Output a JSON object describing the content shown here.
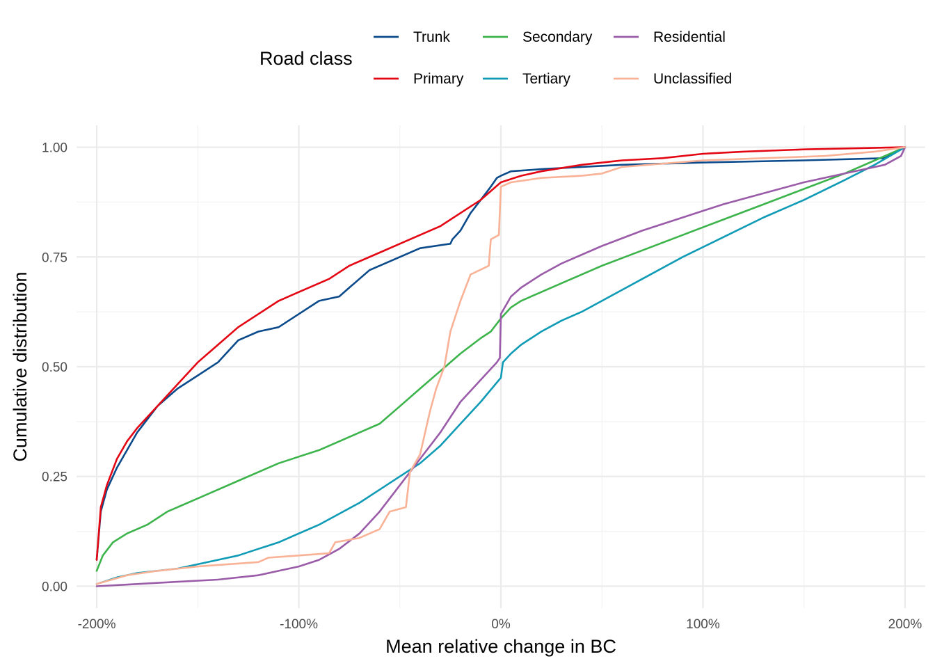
{
  "chart_data": {
    "type": "line",
    "xlabel": "Mean relative change in BC",
    "ylabel": "Cumulative distribution",
    "legend": {
      "title": "Road class",
      "position": "top"
    },
    "xlim": [
      -2.1,
      2.1
    ],
    "ylim": [
      -0.05,
      1.05
    ],
    "x_ticks": [
      {
        "value": -2,
        "label": "-200%"
      },
      {
        "value": -1,
        "label": "-100%"
      },
      {
        "value": 0,
        "label": "0%"
      },
      {
        "value": 1,
        "label": "100%"
      },
      {
        "value": 2,
        "label": "200%"
      }
    ],
    "y_ticks": [
      {
        "value": 0,
        "label": "0.00"
      },
      {
        "value": 0.25,
        "label": "0.25"
      },
      {
        "value": 0.5,
        "label": "0.50"
      },
      {
        "value": 0.75,
        "label": "0.75"
      },
      {
        "value": 1,
        "label": "1.00"
      }
    ],
    "grid": true,
    "series": [
      {
        "name": "Trunk",
        "color": "#0b4a8b",
        "points": [
          [
            -2,
            0.06
          ],
          [
            -1.98,
            0.17
          ],
          [
            -1.95,
            0.22
          ],
          [
            -1.9,
            0.27
          ],
          [
            -1.85,
            0.31
          ],
          [
            -1.8,
            0.35
          ],
          [
            -1.75,
            0.38
          ],
          [
            -1.7,
            0.41
          ],
          [
            -1.6,
            0.45
          ],
          [
            -1.5,
            0.48
          ],
          [
            -1.4,
            0.51
          ],
          [
            -1.3,
            0.56
          ],
          [
            -1.2,
            0.58
          ],
          [
            -1.1,
            0.59
          ],
          [
            -1.0,
            0.62
          ],
          [
            -0.9,
            0.65
          ],
          [
            -0.8,
            0.66
          ],
          [
            -0.75,
            0.68
          ],
          [
            -0.65,
            0.72
          ],
          [
            -0.5,
            0.75
          ],
          [
            -0.4,
            0.77
          ],
          [
            -0.25,
            0.78
          ],
          [
            -0.24,
            0.79
          ],
          [
            -0.2,
            0.81
          ],
          [
            -0.15,
            0.85
          ],
          [
            -0.1,
            0.88
          ],
          [
            -0.05,
            0.91
          ],
          [
            -0.02,
            0.93
          ],
          [
            0.0,
            0.935
          ],
          [
            0.05,
            0.945
          ],
          [
            0.2,
            0.95
          ],
          [
            0.4,
            0.955
          ],
          [
            0.6,
            0.96
          ],
          [
            1.0,
            0.965
          ],
          [
            1.5,
            0.97
          ],
          [
            1.9,
            0.975
          ],
          [
            2.0,
            1.0
          ]
        ]
      },
      {
        "name": "Primary",
        "color": "#e30613",
        "points": [
          [
            -2,
            0.06
          ],
          [
            -1.98,
            0.18
          ],
          [
            -1.95,
            0.23
          ],
          [
            -1.9,
            0.29
          ],
          [
            -1.85,
            0.33
          ],
          [
            -1.8,
            0.36
          ],
          [
            -1.7,
            0.41
          ],
          [
            -1.6,
            0.46
          ],
          [
            -1.5,
            0.51
          ],
          [
            -1.4,
            0.55
          ],
          [
            -1.3,
            0.59
          ],
          [
            -1.2,
            0.62
          ],
          [
            -1.1,
            0.65
          ],
          [
            -1.0,
            0.67
          ],
          [
            -0.95,
            0.68
          ],
          [
            -0.85,
            0.7
          ],
          [
            -0.75,
            0.73
          ],
          [
            -0.6,
            0.76
          ],
          [
            -0.5,
            0.78
          ],
          [
            -0.4,
            0.8
          ],
          [
            -0.3,
            0.82
          ],
          [
            -0.2,
            0.85
          ],
          [
            -0.1,
            0.88
          ],
          [
            -0.05,
            0.9
          ],
          [
            0.0,
            0.92
          ],
          [
            0.1,
            0.935
          ],
          [
            0.2,
            0.945
          ],
          [
            0.4,
            0.96
          ],
          [
            0.6,
            0.97
          ],
          [
            0.8,
            0.975
          ],
          [
            1.0,
            0.985
          ],
          [
            1.2,
            0.99
          ],
          [
            1.5,
            0.995
          ],
          [
            1.8,
            0.998
          ],
          [
            2.0,
            1.0
          ]
        ]
      },
      {
        "name": "Secondary",
        "color": "#3cb44b",
        "points": [
          [
            -2,
            0.035
          ],
          [
            -1.97,
            0.07
          ],
          [
            -1.92,
            0.1
          ],
          [
            -1.85,
            0.12
          ],
          [
            -1.75,
            0.14
          ],
          [
            -1.65,
            0.17
          ],
          [
            -1.5,
            0.2
          ],
          [
            -1.4,
            0.22
          ],
          [
            -1.3,
            0.24
          ],
          [
            -1.2,
            0.26
          ],
          [
            -1.1,
            0.28
          ],
          [
            -1.0,
            0.295
          ],
          [
            -0.9,
            0.31
          ],
          [
            -0.8,
            0.33
          ],
          [
            -0.7,
            0.35
          ],
          [
            -0.6,
            0.37
          ],
          [
            -0.5,
            0.41
          ],
          [
            -0.4,
            0.45
          ],
          [
            -0.3,
            0.49
          ],
          [
            -0.2,
            0.53
          ],
          [
            -0.1,
            0.565
          ],
          [
            -0.05,
            0.58
          ],
          [
            0.0,
            0.61
          ],
          [
            0.05,
            0.635
          ],
          [
            0.1,
            0.65
          ],
          [
            0.2,
            0.67
          ],
          [
            0.3,
            0.69
          ],
          [
            0.5,
            0.73
          ],
          [
            0.7,
            0.765
          ],
          [
            0.9,
            0.8
          ],
          [
            1.1,
            0.835
          ],
          [
            1.3,
            0.87
          ],
          [
            1.5,
            0.905
          ],
          [
            1.7,
            0.94
          ],
          [
            1.85,
            0.97
          ],
          [
            2.0,
            1.0
          ]
        ]
      },
      {
        "name": "Tertiary",
        "color": "#0f9bb5",
        "points": [
          [
            -2,
            0.005
          ],
          [
            -1.9,
            0.02
          ],
          [
            -1.8,
            0.03
          ],
          [
            -1.6,
            0.04
          ],
          [
            -1.5,
            0.05
          ],
          [
            -1.4,
            0.06
          ],
          [
            -1.3,
            0.07
          ],
          [
            -1.2,
            0.085
          ],
          [
            -1.1,
            0.1
          ],
          [
            -1.0,
            0.12
          ],
          [
            -0.9,
            0.14
          ],
          [
            -0.8,
            0.165
          ],
          [
            -0.7,
            0.19
          ],
          [
            -0.6,
            0.22
          ],
          [
            -0.5,
            0.25
          ],
          [
            -0.4,
            0.28
          ],
          [
            -0.3,
            0.32
          ],
          [
            -0.2,
            0.37
          ],
          [
            -0.1,
            0.42
          ],
          [
            0.0,
            0.475
          ],
          [
            0.01,
            0.51
          ],
          [
            0.05,
            0.53
          ],
          [
            0.1,
            0.55
          ],
          [
            0.2,
            0.58
          ],
          [
            0.3,
            0.605
          ],
          [
            0.4,
            0.625
          ],
          [
            0.5,
            0.65
          ],
          [
            0.7,
            0.7
          ],
          [
            0.9,
            0.75
          ],
          [
            1.1,
            0.795
          ],
          [
            1.3,
            0.84
          ],
          [
            1.5,
            0.88
          ],
          [
            1.7,
            0.925
          ],
          [
            1.85,
            0.96
          ],
          [
            2.0,
            1.0
          ]
        ]
      },
      {
        "name": "Residential",
        "color": "#9a5ba8",
        "points": [
          [
            -2,
            0.0
          ],
          [
            -1.8,
            0.005
          ],
          [
            -1.6,
            0.01
          ],
          [
            -1.4,
            0.015
          ],
          [
            -1.2,
            0.025
          ],
          [
            -1.1,
            0.035
          ],
          [
            -1.0,
            0.045
          ],
          [
            -0.9,
            0.06
          ],
          [
            -0.8,
            0.085
          ],
          [
            -0.7,
            0.12
          ],
          [
            -0.6,
            0.17
          ],
          [
            -0.5,
            0.23
          ],
          [
            -0.4,
            0.29
          ],
          [
            -0.3,
            0.35
          ],
          [
            -0.2,
            0.42
          ],
          [
            -0.1,
            0.47
          ],
          [
            -0.02,
            0.51
          ],
          [
            -0.005,
            0.52
          ],
          [
            0.0,
            0.62
          ],
          [
            0.05,
            0.66
          ],
          [
            0.1,
            0.68
          ],
          [
            0.2,
            0.71
          ],
          [
            0.3,
            0.735
          ],
          [
            0.5,
            0.775
          ],
          [
            0.7,
            0.81
          ],
          [
            0.9,
            0.84
          ],
          [
            1.1,
            0.87
          ],
          [
            1.3,
            0.895
          ],
          [
            1.5,
            0.92
          ],
          [
            1.7,
            0.94
          ],
          [
            1.9,
            0.96
          ],
          [
            1.98,
            0.98
          ],
          [
            2.0,
            1.0
          ]
        ]
      },
      {
        "name": "Unclassified",
        "color": "#f9b296",
        "points": [
          [
            -2,
            0.005
          ],
          [
            -1.85,
            0.025
          ],
          [
            -1.7,
            0.035
          ],
          [
            -1.5,
            0.045
          ],
          [
            -1.2,
            0.055
          ],
          [
            -1.15,
            0.065
          ],
          [
            -1.0,
            0.07
          ],
          [
            -0.85,
            0.075
          ],
          [
            -0.82,
            0.1
          ],
          [
            -0.7,
            0.11
          ],
          [
            -0.6,
            0.13
          ],
          [
            -0.55,
            0.17
          ],
          [
            -0.47,
            0.18
          ],
          [
            -0.45,
            0.26
          ],
          [
            -0.4,
            0.3
          ],
          [
            -0.35,
            0.4
          ],
          [
            -0.32,
            0.45
          ],
          [
            -0.28,
            0.5
          ],
          [
            -0.25,
            0.58
          ],
          [
            -0.2,
            0.65
          ],
          [
            -0.15,
            0.71
          ],
          [
            -0.06,
            0.73
          ],
          [
            -0.05,
            0.79
          ],
          [
            -0.01,
            0.8
          ],
          [
            0.0,
            0.91
          ],
          [
            0.05,
            0.92
          ],
          [
            0.2,
            0.93
          ],
          [
            0.4,
            0.935
          ],
          [
            0.5,
            0.94
          ],
          [
            0.6,
            0.955
          ],
          [
            1.0,
            0.97
          ],
          [
            1.3,
            0.975
          ],
          [
            1.6,
            0.98
          ],
          [
            1.85,
            0.99
          ],
          [
            2.0,
            1.0
          ]
        ]
      }
    ]
  }
}
